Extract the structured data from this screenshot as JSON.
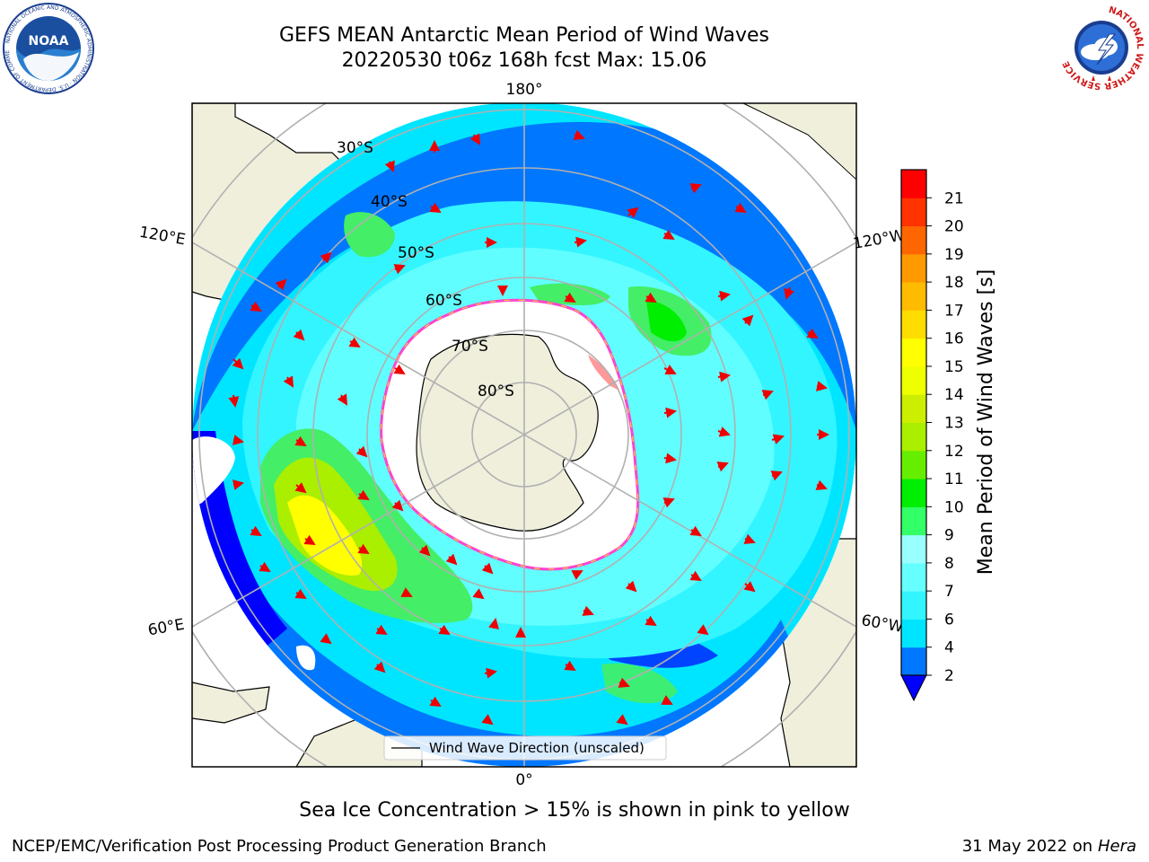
{
  "title": {
    "line1": "GEFS MEAN Antarctic Mean Period of Wind Waves",
    "line2": "20220530 t06z 168h fcst   Max: 15.06"
  },
  "map": {
    "projection": "south-polar-stereographic",
    "longitude_labels": [
      "180°",
      "120°E",
      "120°W",
      "60°E",
      "60°W",
      "0°"
    ],
    "latitude_labels": [
      "30°S",
      "40°S",
      "50°S",
      "60°S",
      "70°S",
      "80°S"
    ],
    "legend_label": "Wind Wave Direction (unscaled)"
  },
  "colorbar": {
    "label": "Mean Period of Wind Waves [s]",
    "ticks": [
      "2",
      "4",
      "6",
      "7",
      "8",
      "9",
      "10",
      "11",
      "12",
      "13",
      "14",
      "15",
      "16",
      "17",
      "18",
      "19",
      "20",
      "21"
    ],
    "colors": [
      "#0077ff",
      "#00e5ff",
      "#33f5ff",
      "#66ffff",
      "#99ffff",
      "#33ff66",
      "#00ee00",
      "#66ee00",
      "#aaee00",
      "#ccee00",
      "#eeff00",
      "#ffff00",
      "#ffdd00",
      "#ffbb00",
      "#ff9900",
      "#ff6600",
      "#ff3300",
      "#ff0000"
    ],
    "under_color": "#0000ff"
  },
  "colors": {
    "land": "#efefdc",
    "ice": "#ffffff",
    "ice_edge_pink": "#ff44cc",
    "ice_edge_yellow": "#ffcc33",
    "arrow": "#ee0000",
    "grid": "#b0b0b0",
    "deep_blue": "#0000ff",
    "blue": "#0077ff",
    "cyan": "#00e5ff",
    "light_cyan": "#66ffff",
    "green": "#44ee66",
    "yellow_green": "#ccee00",
    "yellow": "#ffff00"
  },
  "caption": "Sea Ice Concentration > 15% is shown in pink to yellow",
  "footer": {
    "left": "NCEP/EMC/Verification Post Processing Product Generation Branch",
    "right_date": "31 May 2022 on",
    "right_machine": "Hera"
  },
  "logos": {
    "noaa_text": "NOAA",
    "noaa_ring_text": "NATIONAL OCEANIC AND ATMOSPHERIC ADMINISTRATION · U.S. DEPARTMENT OF COMMERCE",
    "nws_ring_text": "NATIONAL WEATHER SERVICE"
  }
}
